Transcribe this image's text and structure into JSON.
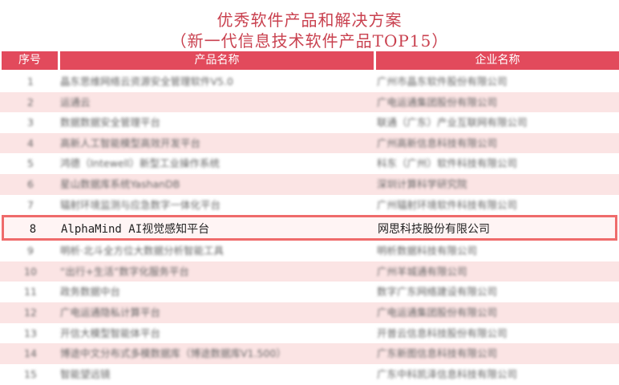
{
  "title": {
    "line1": "优秀软件产品和解决方案",
    "line2": "（新一代信息技术软件产品TOP15）"
  },
  "table": {
    "headers": [
      "序号",
      "产品名称",
      "企业名称"
    ],
    "highlight_color": "#ef6b6b",
    "header_color": "#e24a5c",
    "rows": [
      {
        "no": "1",
        "product": "晶东思维网络云资源安全管理软件V5.0",
        "company": "广州市晶东软件股份有限公司"
      },
      {
        "no": "2",
        "product": "运通云",
        "company": "广电运通集团股份有限公司"
      },
      {
        "no": "3",
        "product": "数据数据安全管理平台",
        "company": "联通（广东）产业互联网有限公司"
      },
      {
        "no": "4",
        "product": "高新人工智能模型高效开发平台",
        "company": "广州高新信息科技有限公司"
      },
      {
        "no": "5",
        "product": "鸿德（Intewell）新型工业操作系统",
        "company": "科东（广州）软件科技有限公司"
      },
      {
        "no": "6",
        "product": "星山数据库系统YashanDB",
        "company": "深圳计算科学研究院"
      },
      {
        "no": "7",
        "product": "辐射环境监测与应急数字一体化平台",
        "company": "广州辐射环境软件科技有限公司"
      },
      {
        "no": "8",
        "product": "AlphaMind AI视觉感知平台",
        "company": "网思科技股份有限公司",
        "highlighted": true
      },
      {
        "no": "9",
        "product": "明析·北斗全方位大数据分析智能工具",
        "company": "明析数据科技有限公司"
      },
      {
        "no": "10",
        "product": "“出行+生活”数字化服务平台",
        "company": "广州羊城通有限公司"
      },
      {
        "no": "11",
        "product": "政务数据中台",
        "company": "数字广东网络建设有限公司"
      },
      {
        "no": "12",
        "product": "广电运通隐私计算平台",
        "company": "广电运通集团股份有限公司"
      },
      {
        "no": "13",
        "product": "开信大模型智能体平台",
        "company": "开普云信息科技股份有限公司"
      },
      {
        "no": "14",
        "product": "博途中文分布式多模数据库（博途数据库V1.500）",
        "company": "广东新图信息科技有限公司"
      },
      {
        "no": "15",
        "product": "智能望远镜",
        "company": "广东中科凯泽信息科技有限公司"
      }
    ]
  }
}
